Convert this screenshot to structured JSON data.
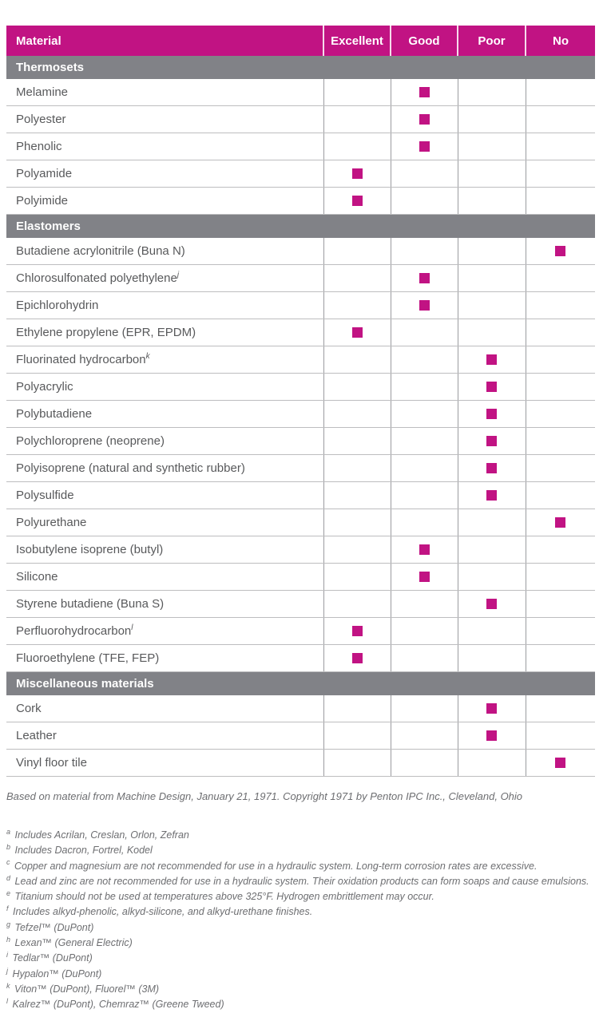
{
  "table": {
    "columns": [
      "Material",
      "Excellent",
      "Good",
      "Poor",
      "No"
    ],
    "sections": [
      {
        "title": "Thermosets",
        "rows": [
          {
            "material": "Melamine",
            "sup": "",
            "rating": "Good"
          },
          {
            "material": "Polyester",
            "sup": "",
            "rating": "Good"
          },
          {
            "material": "Phenolic",
            "sup": "",
            "rating": "Good"
          },
          {
            "material": "Polyamide",
            "sup": "",
            "rating": "Excellent"
          },
          {
            "material": "Polyimide",
            "sup": "",
            "rating": "Excellent"
          }
        ]
      },
      {
        "title": "Elastomers",
        "rows": [
          {
            "material": "Butadiene acrylonitrile (Buna N)",
            "sup": "",
            "rating": "No"
          },
          {
            "material": "Chlorosulfonated polyethylene",
            "sup": "j",
            "rating": "Good"
          },
          {
            "material": "Epichlorohydrin",
            "sup": "",
            "rating": "Good"
          },
          {
            "material": "Ethylene propylene (EPR, EPDM)",
            "sup": "",
            "rating": "Excellent"
          },
          {
            "material": "Fluorinated hydrocarbon",
            "sup": "k",
            "rating": "Poor"
          },
          {
            "material": "Polyacrylic",
            "sup": "",
            "rating": "Poor"
          },
          {
            "material": "Polybutadiene",
            "sup": "",
            "rating": "Poor"
          },
          {
            "material": "Polychloroprene (neoprene)",
            "sup": "",
            "rating": "Poor"
          },
          {
            "material": "Polyisoprene (natural and synthetic rubber)",
            "sup": "",
            "rating": "Poor"
          },
          {
            "material": "Polysulfide",
            "sup": "",
            "rating": "Poor"
          },
          {
            "material": "Polyurethane",
            "sup": "",
            "rating": "No"
          },
          {
            "material": "Isobutylene isoprene (butyl)",
            "sup": "",
            "rating": "Good"
          },
          {
            "material": "Silicone",
            "sup": "",
            "rating": "Good"
          },
          {
            "material": "Styrene butadiene (Buna S)",
            "sup": "",
            "rating": "Poor"
          },
          {
            "material": "Perfluorohydrocarbon",
            "sup": "l",
            "rating": "Excellent"
          },
          {
            "material": "Fluoroethylene (TFE, FEP)",
            "sup": "",
            "rating": "Excellent"
          }
        ]
      },
      {
        "title": "Miscellaneous materials",
        "rows": [
          {
            "material": "Cork",
            "sup": "",
            "rating": "Poor"
          },
          {
            "material": "Leather",
            "sup": "",
            "rating": "Poor"
          },
          {
            "material": "Vinyl floor tile",
            "sup": "",
            "rating": "No"
          }
        ]
      }
    ]
  },
  "source_note": "Based on material from Machine Design, January 21, 1971. Copyright 1971 by Penton IPC Inc., Cleveland, Ohio",
  "footnotes": [
    {
      "marker": "a",
      "text": "Includes Acrilan, Creslan, Orlon, Zefran"
    },
    {
      "marker": "b",
      "text": "Includes Dacron, Fortrel, Kodel"
    },
    {
      "marker": "c",
      "text": "Copper and magnesium are not recommended for use in a hydraulic system. Long-term corrosion rates are excessive."
    },
    {
      "marker": "d",
      "text": "Lead and zinc are not recommended for use in a hydraulic system. Their oxidation products can form soaps and cause emulsions."
    },
    {
      "marker": "e",
      "text": "Titanium should not be used at temperatures above 325°F. Hydrogen embrittlement may occur."
    },
    {
      "marker": "f",
      "text": "Includes alkyd-phenolic, alkyd-silicone, and alkyd-urethane finishes."
    },
    {
      "marker": "g",
      "text": "Tefzel™ (DuPont)"
    },
    {
      "marker": "h",
      "text": "Lexan™ (General Electric)"
    },
    {
      "marker": "i",
      "text": "Tedlar™ (DuPont)"
    },
    {
      "marker": "j",
      "text": "Hypalon™ (DuPont)"
    },
    {
      "marker": "k",
      "text": "Viton™ (DuPont), Fluorel™ (3M)"
    },
    {
      "marker": "l",
      "text": "Kalrez™ (DuPont), Chemraz™ (Greene Tweed)"
    }
  ],
  "colors": {
    "accent_magenta": "#c11383",
    "section_gray": "#818287",
    "row_text": "#58595b",
    "note_text": "#6d6e71"
  }
}
